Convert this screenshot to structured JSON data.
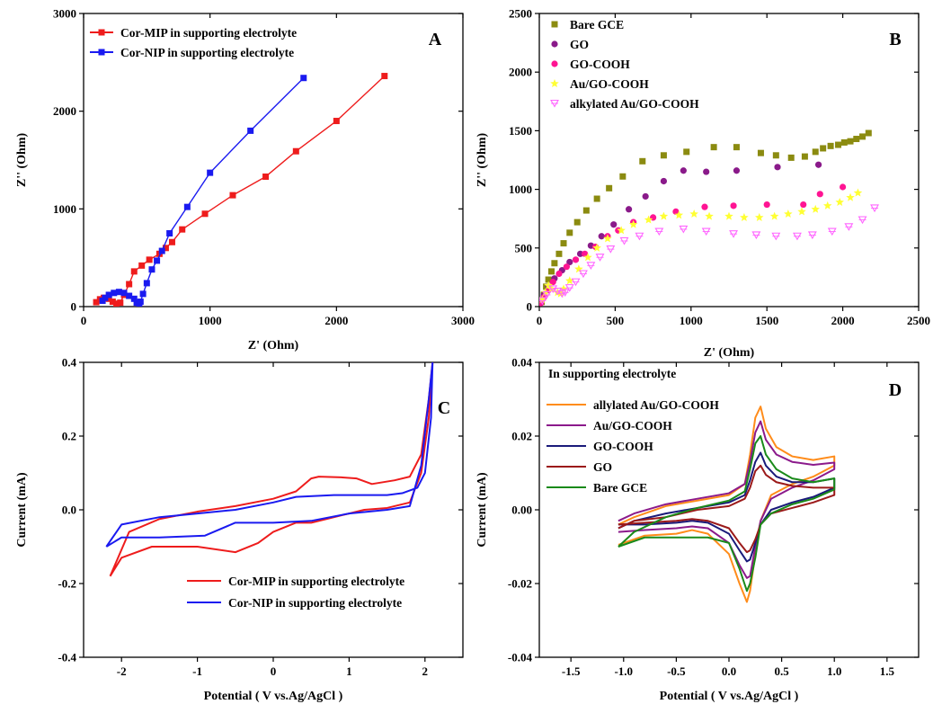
{
  "chart_data": [
    {
      "panel": "A",
      "type": "line",
      "xlabel": "Z' (Ohm)",
      "ylabel": "Z'' (Ohm)",
      "xlim": [
        0,
        3000
      ],
      "ylim": [
        0,
        3000
      ],
      "xticks": [
        "0",
        "1000",
        "2000",
        "3000"
      ],
      "yticks": [
        "0",
        "1000",
        "2000",
        "3000"
      ],
      "legend_position": "top-left",
      "series": [
        {
          "name": "Cor-MIP in supporting electrolyte",
          "color": "#ee1c1c",
          "marker": "square",
          "x": [
            100,
            130,
            160,
            200,
            230,
            260,
            290,
            320,
            360,
            400,
            460,
            520,
            600,
            650,
            700,
            780,
            960,
            1180,
            1440,
            1680,
            2000,
            2380
          ],
          "y": [
            45,
            75,
            90,
            80,
            50,
            30,
            40,
            120,
            230,
            360,
            420,
            480,
            540,
            600,
            660,
            790,
            950,
            1140,
            1330,
            1590,
            1900,
            2360
          ]
        },
        {
          "name": "Cor-NIP in supporting electrolyte",
          "color": "#1a1af0",
          "marker": "square",
          "x": [
            150,
            170,
            200,
            240,
            280,
            320,
            360,
            400,
            420,
            440,
            450,
            470,
            500,
            540,
            580,
            620,
            680,
            820,
            1000,
            1320,
            1740
          ],
          "y": [
            60,
            90,
            120,
            140,
            150,
            140,
            110,
            80,
            40,
            20,
            50,
            130,
            240,
            380,
            470,
            570,
            750,
            1020,
            1370,
            1800,
            2340
          ]
        }
      ]
    },
    {
      "panel": "B",
      "type": "scatter",
      "xlabel": "Z' (Ohm)",
      "ylabel": "Z'' (Ohm)",
      "xlim": [
        0,
        2500
      ],
      "ylim": [
        0,
        2500
      ],
      "xticks": [
        "0",
        "500",
        "1000",
        "1500",
        "2000",
        "2500"
      ],
      "yticks": [
        "0",
        "500",
        "1000",
        "1500",
        "2000",
        "2500"
      ],
      "legend_position": "top-left",
      "series": [
        {
          "name": "Bare GCE",
          "color": "#8b8b10",
          "marker": "square",
          "x": [
            15,
            30,
            45,
            60,
            80,
            100,
            130,
            160,
            200,
            250,
            310,
            380,
            460,
            550,
            680,
            820,
            970,
            1150,
            1300,
            1460,
            1560,
            1660,
            1750,
            1820,
            1870,
            1920,
            1970,
            2010,
            2050,
            2090,
            2130,
            2170
          ],
          "y": [
            40,
            100,
            170,
            230,
            300,
            370,
            450,
            540,
            630,
            720,
            820,
            920,
            1010,
            1110,
            1240,
            1290,
            1320,
            1360,
            1360,
            1310,
            1290,
            1270,
            1280,
            1320,
            1350,
            1370,
            1380,
            1400,
            1410,
            1430,
            1450,
            1480
          ]
        },
        {
          "name": "GO",
          "color": "#8a1a8a",
          "marker": "circle",
          "x": [
            10,
            30,
            60,
            100,
            150,
            200,
            270,
            340,
            410,
            490,
            590,
            700,
            820,
            950,
            1100,
            1300,
            1570,
            1840
          ],
          "y": [
            40,
            100,
            170,
            240,
            310,
            380,
            450,
            520,
            600,
            700,
            830,
            940,
            1070,
            1160,
            1150,
            1160,
            1190,
            1210
          ]
        },
        {
          "name": "GO-COOH",
          "color": "#ff1493",
          "marker": "circle",
          "x": [
            10,
            30,
            60,
            90,
            130,
            180,
            240,
            300,
            370,
            450,
            520,
            620,
            750,
            900,
            1090,
            1280,
            1500,
            1740,
            1850,
            2000
          ],
          "y": [
            30,
            80,
            140,
            210,
            280,
            340,
            400,
            450,
            510,
            600,
            650,
            720,
            760,
            810,
            850,
            860,
            870,
            870,
            960,
            1020
          ]
        },
        {
          "name": "Au/GO-COOH",
          "color": "#ffff33",
          "marker": "star",
          "x": [
            20,
            40,
            60,
            80,
            120,
            140,
            160,
            200,
            260,
            320,
            380,
            450,
            540,
            620,
            720,
            820,
            920,
            1020,
            1120,
            1250,
            1350,
            1450,
            1550,
            1640,
            1730,
            1820,
            1900,
            1980,
            2050,
            2100
          ],
          "y": [
            60,
            120,
            180,
            150,
            120,
            110,
            150,
            220,
            320,
            420,
            500,
            580,
            650,
            700,
            740,
            770,
            780,
            790,
            770,
            770,
            760,
            760,
            770,
            790,
            810,
            830,
            860,
            890,
            930,
            970
          ]
        },
        {
          "name": "alkylated Au/GO-COOH",
          "color": "#ff66ff",
          "marker": "triangle",
          "x": [
            20,
            50,
            90,
            120,
            150,
            170,
            200,
            240,
            290,
            340,
            400,
            470,
            560,
            660,
            790,
            950,
            1100,
            1280,
            1430,
            1560,
            1700,
            1800,
            1930,
            2040,
            2130,
            2210
          ],
          "y": [
            50,
            100,
            150,
            130,
            110,
            120,
            160,
            210,
            280,
            350,
            420,
            490,
            560,
            600,
            640,
            660,
            640,
            620,
            610,
            600,
            600,
            610,
            640,
            680,
            740,
            840
          ]
        }
      ]
    },
    {
      "panel": "C",
      "type": "line",
      "xlabel": "Potential ( V vs.Ag/AgCl )",
      "ylabel": "Current (mA)",
      "xlim": [
        -2.5,
        2.5
      ],
      "ylim": [
        -0.4,
        0.4
      ],
      "xticks": [
        "-2",
        "-1",
        "0",
        "1",
        "2"
      ],
      "yticks": [
        "-0.4",
        "-0.2",
        "0.0",
        "0.2",
        "0.4"
      ],
      "legend_position": "bottom-right",
      "series": [
        {
          "name": "Cor-MIP in supporting electrolyte",
          "color": "#ee1c1c",
          "x": [
            -2.15,
            -2.0,
            -1.6,
            -1.0,
            -0.5,
            -0.2,
            0.0,
            0.3,
            0.5,
            0.7,
            1.0,
            1.2,
            1.5,
            1.8,
            1.95,
            2.05,
            2.1,
            2.05,
            1.95,
            1.8,
            1.6,
            1.3,
            1.1,
            0.9,
            0.6,
            0.5,
            0.3,
            0.0,
            -0.5,
            -1.0,
            -1.5,
            -1.9,
            -2.15
          ],
          "y": [
            -0.18,
            -0.13,
            -0.1,
            -0.1,
            -0.115,
            -0.09,
            -0.06,
            -0.035,
            -0.035,
            -0.025,
            -0.01,
            0.0,
            0.005,
            0.02,
            0.1,
            0.25,
            0.4,
            0.3,
            0.15,
            0.09,
            0.08,
            0.07,
            0.085,
            0.088,
            0.09,
            0.085,
            0.05,
            0.03,
            0.01,
            -0.005,
            -0.025,
            -0.06,
            -0.18
          ]
        },
        {
          "name": "Cor-NIP in supporting electrolyte",
          "color": "#1a1af0",
          "x": [
            -2.2,
            -2.0,
            -1.5,
            -0.9,
            -0.5,
            0.0,
            0.5,
            1.0,
            1.5,
            1.8,
            1.95,
            2.05,
            2.1,
            2.08,
            2.0,
            1.9,
            1.7,
            1.5,
            1.2,
            0.8,
            0.3,
            0.0,
            -0.5,
            -1.0,
            -1.5,
            -2.0,
            -2.2
          ],
          "y": [
            -0.1,
            -0.075,
            -0.075,
            -0.07,
            -0.035,
            -0.035,
            -0.03,
            -0.01,
            0.0,
            0.01,
            0.12,
            0.3,
            0.4,
            0.25,
            0.1,
            0.06,
            0.045,
            0.04,
            0.04,
            0.04,
            0.035,
            0.02,
            0.0,
            -0.01,
            -0.02,
            -0.04,
            -0.1
          ]
        }
      ]
    },
    {
      "panel": "D",
      "type": "line",
      "title": "In supporting electrolyte",
      "xlabel": "Potential ( V vs.Ag/AgCl )",
      "ylabel": "Current (mA)",
      "xlim": [
        -1.8,
        1.8
      ],
      "ylim": [
        -0.04,
        0.04
      ],
      "xticks": [
        "-1.5",
        "-1.0",
        "-0.5",
        "0.0",
        "0.5",
        "1.0",
        "1.5"
      ],
      "yticks": [
        "-0.04",
        "-0.02",
        "0.00",
        "0.02",
        "0.04"
      ],
      "legend_position": "top-left",
      "series": [
        {
          "name": "allylated Au/GO-COOH",
          "color": "#ff8c1a",
          "x": [
            -1.05,
            -0.9,
            -0.6,
            -0.3,
            0.0,
            0.15,
            0.2,
            0.25,
            0.3,
            0.35,
            0.45,
            0.6,
            0.8,
            1.0,
            1.0,
            0.8,
            0.6,
            0.4,
            0.3,
            0.25,
            0.2,
            0.17,
            0.1,
            0.0,
            -0.2,
            -0.35,
            -0.5,
            -0.8,
            -1.05
          ],
          "y": [
            -0.004,
            -0.002,
            0.001,
            0.0025,
            0.004,
            0.007,
            0.015,
            0.025,
            0.028,
            0.022,
            0.017,
            0.0145,
            0.0135,
            0.0145,
            0.012,
            0.009,
            0.007,
            0.004,
            -0.003,
            -0.012,
            -0.022,
            -0.025,
            -0.02,
            -0.012,
            -0.0065,
            -0.0055,
            -0.0065,
            -0.007,
            -0.0095
          ]
        },
        {
          "name": "Au/GO-COOH",
          "color": "#8b1a8b",
          "x": [
            -1.05,
            -0.9,
            -0.6,
            -0.3,
            0.0,
            0.15,
            0.2,
            0.25,
            0.3,
            0.35,
            0.45,
            0.6,
            0.8,
            1.0,
            1.0,
            0.8,
            0.6,
            0.4,
            0.3,
            0.25,
            0.2,
            0.17,
            0.1,
            0.0,
            -0.2,
            -0.35,
            -0.5,
            -0.8,
            -1.05
          ],
          "y": [
            -0.003,
            -0.001,
            0.0015,
            0.003,
            0.0045,
            0.007,
            0.013,
            0.021,
            0.024,
            0.019,
            0.015,
            0.013,
            0.0122,
            0.0128,
            0.011,
            0.008,
            0.006,
            0.003,
            -0.003,
            -0.01,
            -0.018,
            -0.0185,
            -0.015,
            -0.009,
            -0.005,
            -0.0045,
            -0.005,
            -0.0055,
            -0.006
          ]
        },
        {
          "name": "GO-COOH",
          "color": "#1a1a7a",
          "x": [
            -1.05,
            -0.9,
            -0.6,
            -0.3,
            0.0,
            0.15,
            0.2,
            0.25,
            0.3,
            0.35,
            0.45,
            0.6,
            0.8,
            1.0,
            1.0,
            0.8,
            0.6,
            0.4,
            0.3,
            0.25,
            0.2,
            0.17,
            0.1,
            0.0,
            -0.2,
            -0.35,
            -0.5,
            -0.8,
            -1.05
          ],
          "y": [
            -0.005,
            -0.003,
            -0.001,
            0.0005,
            0.002,
            0.004,
            0.008,
            0.013,
            0.0155,
            0.012,
            0.009,
            0.0075,
            0.0075,
            0.0085,
            0.006,
            0.0035,
            0.002,
            0.0,
            -0.004,
            -0.009,
            -0.0135,
            -0.014,
            -0.011,
            -0.0065,
            -0.0035,
            -0.003,
            -0.0035,
            -0.004,
            -0.004
          ]
        },
        {
          "name": "GO",
          "color": "#9b1a1a",
          "x": [
            -1.05,
            -0.9,
            -0.6,
            -0.3,
            0.0,
            0.15,
            0.2,
            0.25,
            0.3,
            0.35,
            0.45,
            0.6,
            0.8,
            1.0,
            1.0,
            0.8,
            0.6,
            0.4,
            0.3,
            0.25,
            0.2,
            0.17,
            0.1,
            0.0,
            -0.2,
            -0.35,
            -0.5,
            -0.8,
            -1.05
          ],
          "y": [
            -0.005,
            -0.003,
            -0.002,
            0.0,
            0.001,
            0.003,
            0.006,
            0.0105,
            0.012,
            0.0095,
            0.0075,
            0.0065,
            0.006,
            0.006,
            0.004,
            0.002,
            0.0005,
            -0.001,
            -0.004,
            -0.008,
            -0.011,
            -0.0115,
            -0.009,
            -0.005,
            -0.003,
            -0.0025,
            -0.003,
            -0.0035,
            -0.004
          ]
        },
        {
          "name": "Bare GCE",
          "color": "#1a8a1a",
          "x": [
            -1.05,
            -0.9,
            -0.6,
            -0.3,
            0.0,
            0.15,
            0.2,
            0.25,
            0.3,
            0.35,
            0.45,
            0.6,
            0.8,
            1.0,
            1.0,
            0.8,
            0.6,
            0.4,
            0.3,
            0.25,
            0.2,
            0.17,
            0.1,
            0.0,
            -0.2,
            -0.35,
            -0.5,
            -0.8,
            -1.05
          ],
          "y": [
            -0.01,
            -0.006,
            -0.002,
            0.0005,
            0.0025,
            0.005,
            0.011,
            0.018,
            0.02,
            0.015,
            0.011,
            0.0085,
            0.0075,
            0.0085,
            0.0055,
            0.003,
            0.0015,
            -0.001,
            -0.004,
            -0.013,
            -0.02,
            -0.022,
            -0.016,
            -0.009,
            -0.0075,
            -0.0075,
            -0.0075,
            -0.0075,
            -0.01
          ]
        }
      ]
    }
  ],
  "panel_labels": [
    "A",
    "B",
    "C",
    "D"
  ]
}
